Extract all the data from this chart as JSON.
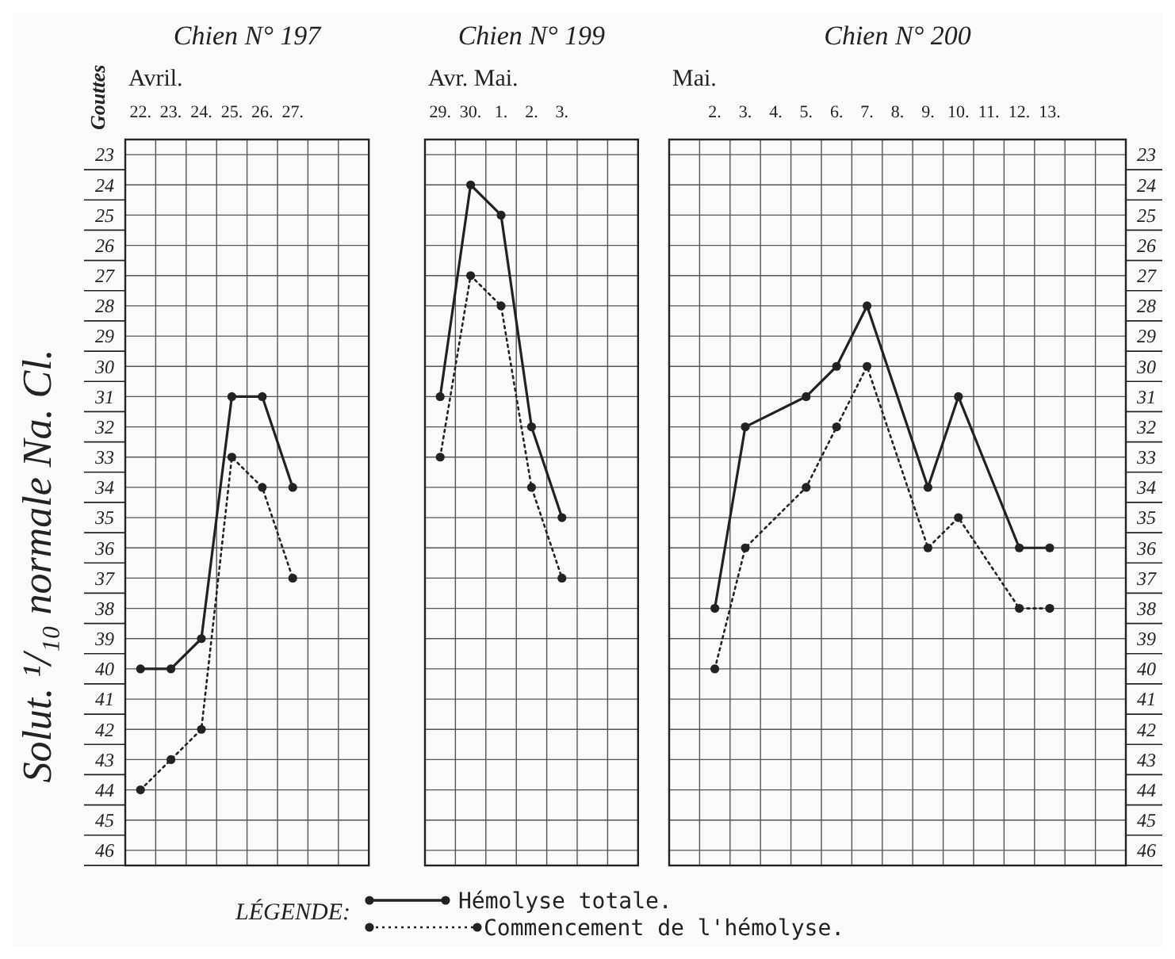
{
  "chart_data": [
    {
      "type": "line",
      "title": "Chien N° 197",
      "xlabel": "Avril.",
      "ylabel": "Solut. ¹/₁₀ normale Na. Cl.",
      "annotations": [
        "Gouttes"
      ],
      "categories": [
        "22.",
        "23.",
        "24.",
        "25.",
        "26.",
        "27.",
        null,
        null
      ],
      "ylim": [
        46.5,
        22.5
      ],
      "yticks": [
        23,
        24,
        25,
        26,
        27,
        28,
        29,
        30,
        31,
        32,
        33,
        34,
        35,
        36,
        37,
        38,
        39,
        40,
        41,
        42,
        43,
        44,
        45,
        46
      ],
      "grid": true,
      "marker": "circle",
      "series": [
        {
          "color": "#222222",
          "line_style": "solid",
          "values": [
            40,
            40,
            39,
            31,
            31,
            34,
            null,
            null
          ]
        },
        {
          "color": "#222222",
          "line_style": "dotted",
          "values": [
            44,
            43,
            42,
            33,
            34,
            37,
            null,
            null
          ]
        }
      ]
    },
    {
      "type": "line",
      "title": "Chien N° 199",
      "xlabel": "Avr. Mai.",
      "categories": [
        "29.",
        "30.",
        "1.",
        "2.",
        "3.",
        null,
        null
      ],
      "ylim": [
        46.5,
        22.5
      ],
      "yticks": [
        23,
        24,
        25,
        26,
        27,
        28,
        29,
        30,
        31,
        32,
        33,
        34,
        35,
        36,
        37,
        38,
        39,
        40,
        41,
        42,
        43,
        44,
        45,
        46
      ],
      "tick_labels": "x",
      "grid": true,
      "marker": "circle",
      "legend": "bottom",
      "legend_title": "LÉGENDE:",
      "series": [
        {
          "name": "Hémolyse totale.",
          "color": "#222222",
          "line_style": "solid",
          "values": [
            31,
            24,
            25,
            32,
            35,
            null,
            null
          ]
        },
        {
          "name": "Commencement de l'hémolyse.",
          "color": "#222222",
          "line_style": "dotted",
          "values": [
            33,
            27,
            28,
            34,
            37,
            null,
            null
          ]
        }
      ]
    },
    {
      "type": "line",
      "title": "Chien N° 200",
      "xlabel": "Mai.",
      "categories": [
        null,
        "2.",
        "3.",
        "4.",
        "5.",
        "6.",
        "7.",
        "8.",
        "9.",
        "10.",
        "11.",
        "12.",
        "13.",
        null,
        null
      ],
      "ylim": [
        46.5,
        22.5
      ],
      "yticks": [
        23,
        24,
        25,
        26,
        27,
        28,
        29,
        30,
        31,
        32,
        33,
        34,
        35,
        36,
        37,
        38,
        39,
        40,
        41,
        42,
        43,
        44,
        45,
        46
      ],
      "grid": true,
      "marker": "circle",
      "series": [
        {
          "color": "#222222",
          "line_style": "solid",
          "values": [
            null,
            38,
            32,
            null,
            31,
            30,
            28,
            null,
            34,
            31,
            null,
            36,
            36,
            null,
            null
          ]
        },
        {
          "color": "#222222",
          "line_style": "dotted",
          "values": [
            null,
            40,
            36,
            null,
            34,
            32,
            30,
            null,
            36,
            35,
            null,
            38,
            38,
            null,
            null
          ]
        }
      ]
    }
  ]
}
